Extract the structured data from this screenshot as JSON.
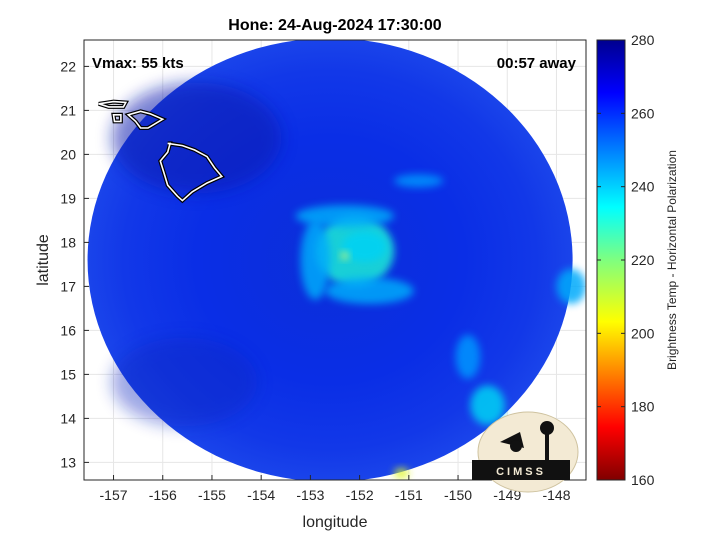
{
  "chart_data": {
    "type": "heatmap",
    "title": "Hone: 24-Aug-2024 17:30:00",
    "xlabel": "longitude",
    "ylabel": "latitude",
    "xlim": [
      -157.6,
      -147.4
    ],
    "ylim": [
      12.6,
      22.6
    ],
    "x_ticks": [
      -157,
      -156,
      -155,
      -154,
      -153,
      -152,
      -151,
      -150,
      -149,
      -148
    ],
    "y_ticks": [
      13,
      14,
      15,
      16,
      17,
      18,
      19,
      20,
      21,
      22
    ],
    "grid": true,
    "annotations": {
      "vmax": "Vmax: 55 kts",
      "time_offset": "00:57 away"
    },
    "colorbar": {
      "label": "Brightness Temp - Horizontal Polarization",
      "range": [
        160,
        280
      ],
      "ticks": [
        160,
        180,
        200,
        220,
        240,
        260,
        280
      ],
      "colormap": "jet"
    },
    "storm_center": {
      "lon": -152.3,
      "lat": 17.7
    },
    "swath": {
      "center_lon": -152.6,
      "center_lat": 17.6,
      "radius_deg": 5.6
    },
    "coastlines": [
      {
        "island": "Hawaii",
        "points": [
          [
            -155.9,
            20.25
          ],
          [
            -155.6,
            20.2
          ],
          [
            -155.35,
            20.1
          ],
          [
            -155.1,
            19.95
          ],
          [
            -154.95,
            19.7
          ],
          [
            -154.8,
            19.5
          ],
          [
            -155.1,
            19.35
          ],
          [
            -155.4,
            19.15
          ],
          [
            -155.6,
            18.95
          ],
          [
            -155.7,
            19.05
          ],
          [
            -155.9,
            19.3
          ],
          [
            -155.98,
            19.6
          ],
          [
            -156.05,
            19.85
          ],
          [
            -155.9,
            20.05
          ],
          [
            -155.85,
            20.25
          ]
        ]
      },
      {
        "island": "Maui",
        "points": [
          [
            -156.7,
            20.9
          ],
          [
            -156.45,
            20.98
          ],
          [
            -156.25,
            20.92
          ],
          [
            -156.0,
            20.8
          ],
          [
            -156.3,
            20.6
          ],
          [
            -156.45,
            20.6
          ],
          [
            -156.55,
            20.75
          ]
        ]
      },
      {
        "island": "Molokai",
        "points": [
          [
            -157.3,
            21.15
          ],
          [
            -157.0,
            21.2
          ],
          [
            -156.75,
            21.18
          ],
          [
            -156.8,
            21.08
          ],
          [
            -157.1,
            21.08
          ]
        ]
      },
      {
        "island": "Lanai",
        "points": [
          [
            -157.0,
            20.9
          ],
          [
            -156.85,
            20.9
          ],
          [
            -156.85,
            20.75
          ],
          [
            -156.98,
            20.75
          ]
        ]
      }
    ],
    "features": [
      {
        "name": "eyewall-arc",
        "lon": -152.1,
        "lat": 17.8,
        "rx": 0.8,
        "ry": 0.8,
        "intensity": 0.55
      },
      {
        "name": "warm-core",
        "lon": -151.9,
        "lat": 17.9,
        "rx": 0.45,
        "ry": 0.35,
        "intensity": 0.45
      },
      {
        "name": "north-band",
        "lon": -152.3,
        "lat": 18.6,
        "rx": 1.0,
        "ry": 0.25,
        "intensity": 0.35
      },
      {
        "name": "west-band",
        "lon": -152.9,
        "lat": 17.6,
        "rx": 0.3,
        "ry": 0.9,
        "intensity": 0.35
      },
      {
        "name": "south-arc",
        "lon": -151.8,
        "lat": 16.9,
        "rx": 0.9,
        "ry": 0.3,
        "intensity": 0.35
      },
      {
        "name": "ne-band",
        "lon": -150.8,
        "lat": 19.4,
        "rx": 0.5,
        "ry": 0.15,
        "intensity": 0.3
      },
      {
        "name": "se-rain-1",
        "lon": -149.4,
        "lat": 14.3,
        "rx": 0.35,
        "ry": 0.45,
        "intensity": 0.45
      },
      {
        "name": "se-rain-2",
        "lon": -149.8,
        "lat": 15.4,
        "rx": 0.25,
        "ry": 0.5,
        "intensity": 0.3
      },
      {
        "name": "east-edge",
        "lon": -147.7,
        "lat": 17.0,
        "rx": 0.3,
        "ry": 0.4,
        "intensity": 0.35
      },
      {
        "name": "south-edge-hot",
        "lon": -151.15,
        "lat": 12.75,
        "rx": 0.15,
        "ry": 0.12,
        "intensity": 0.85
      }
    ]
  },
  "logo": {
    "text": "CIMSS"
  }
}
